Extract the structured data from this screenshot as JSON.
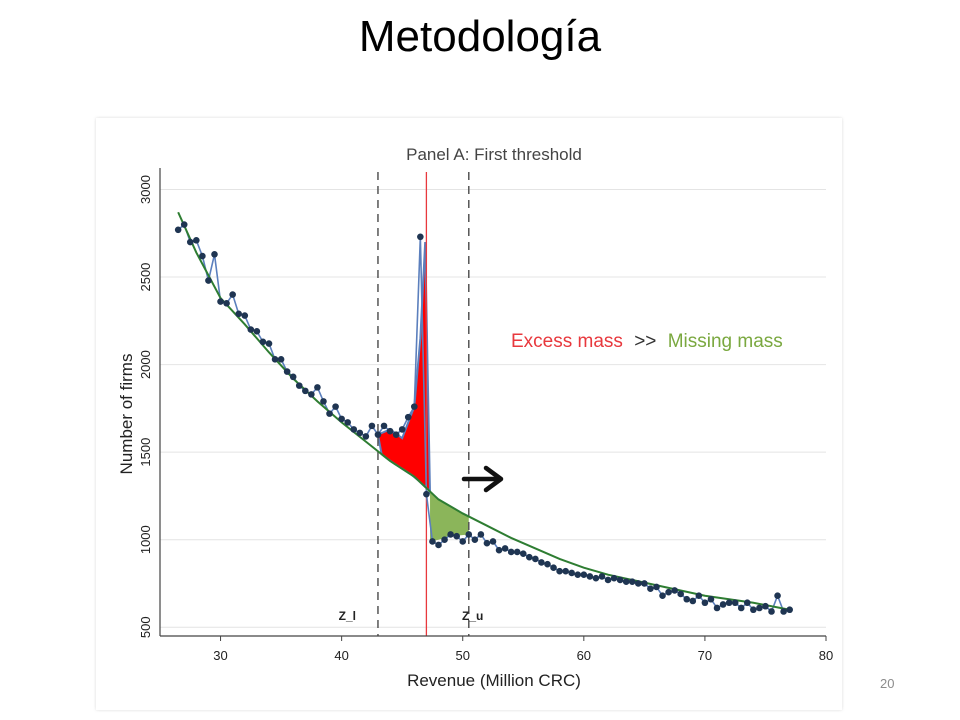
{
  "slide": {
    "title": "Metodología",
    "page_number": "20"
  },
  "chart_data": {
    "type": "line",
    "title": "Panel A: First threshold",
    "xlabel": "Revenue (Million CRC)",
    "ylabel": "Number of firms",
    "xlim": [
      25,
      80
    ],
    "ylim": [
      450,
      3100
    ],
    "x_ticks": [
      30,
      40,
      50,
      60,
      70,
      80
    ],
    "y_ticks": [
      500,
      1000,
      1500,
      2000,
      2500,
      3000
    ],
    "grid": true,
    "thresholds": {
      "z_l": 43,
      "z_u": 50.5,
      "notch": 47
    },
    "threshold_labels": {
      "z_l": "Z_l",
      "z_u": "Z_u"
    },
    "annotation": {
      "excess": "Excess mass",
      "operator": ">>",
      "missing": "Missing mass"
    },
    "colors": {
      "observed": "#5b7fbd",
      "markers": "#1f3552",
      "fit": "#2e7d32",
      "notch": "#e8383d",
      "excess": "#ff0000",
      "missing": "#8bb55a",
      "excess_text": "#e8383d",
      "missing_text": "#7aa83f"
    },
    "series": [
      {
        "name": "Observed",
        "x": [
          26.5,
          27,
          27.5,
          28,
          28.5,
          29,
          29.5,
          30,
          30.5,
          31,
          31.5,
          32,
          32.5,
          33,
          33.5,
          34,
          34.5,
          35,
          35.5,
          36,
          36.5,
          37,
          37.5,
          38,
          38.5,
          39,
          39.5,
          40,
          40.5,
          41,
          41.5,
          42,
          42.5,
          43,
          43.5,
          44,
          44.5,
          45,
          45.5,
          46,
          46.5,
          47,
          47.5,
          48,
          48.5,
          49,
          49.5,
          50,
          50.5,
          51,
          51.5,
          52,
          52.5,
          53,
          53.5,
          54,
          54.5,
          55,
          55.5,
          56,
          56.5,
          57,
          57.5,
          58,
          58.5,
          59,
          59.5,
          60,
          60.5,
          61,
          61.5,
          62,
          62.5,
          63,
          63.5,
          64,
          64.5,
          65,
          65.5,
          66,
          66.5,
          67,
          67.5,
          68,
          68.5,
          69,
          69.5,
          70,
          70.5,
          71,
          71.5,
          72,
          72.5,
          73,
          73.5,
          74,
          74.5,
          75,
          75.5,
          76,
          76.5,
          77
        ],
        "y": [
          2770,
          2800,
          2700,
          2710,
          2620,
          2480,
          2630,
          2360,
          2350,
          2400,
          2290,
          2280,
          2200,
          2190,
          2130,
          2120,
          2030,
          2030,
          1960,
          1930,
          1880,
          1850,
          1830,
          1870,
          1790,
          1720,
          1760,
          1690,
          1670,
          1630,
          1610,
          1590,
          1650,
          1600,
          1650,
          1620,
          1600,
          1630,
          1700,
          1760,
          2730,
          1260,
          990,
          970,
          1000,
          1030,
          1020,
          990,
          1030,
          1000,
          1030,
          980,
          990,
          940,
          950,
          930,
          930,
          920,
          900,
          890,
          870,
          860,
          840,
          820,
          820,
          810,
          800,
          800,
          790,
          780,
          790,
          770,
          780,
          770,
          760,
          760,
          750,
          750,
          720,
          730,
          680,
          700,
          710,
          690,
          660,
          650,
          680,
          640,
          660,
          610,
          630,
          640,
          640,
          610,
          640,
          600,
          610,
          620,
          590,
          680,
          590,
          600
        ]
      },
      {
        "name": "Counterfactual",
        "x": [
          26.5,
          28,
          30,
          32,
          34,
          36,
          38,
          40,
          42,
          44,
          46,
          48,
          50,
          52,
          54,
          56,
          58,
          60,
          62,
          64,
          66,
          68,
          70,
          72,
          74,
          77
        ],
        "y": [
          2870,
          2640,
          2380,
          2230,
          2070,
          1920,
          1790,
          1670,
          1560,
          1450,
          1360,
          1230,
          1150,
          1080,
          1010,
          950,
          890,
          840,
          800,
          770,
          740,
          710,
          680,
          660,
          640,
          600
        ]
      }
    ]
  }
}
